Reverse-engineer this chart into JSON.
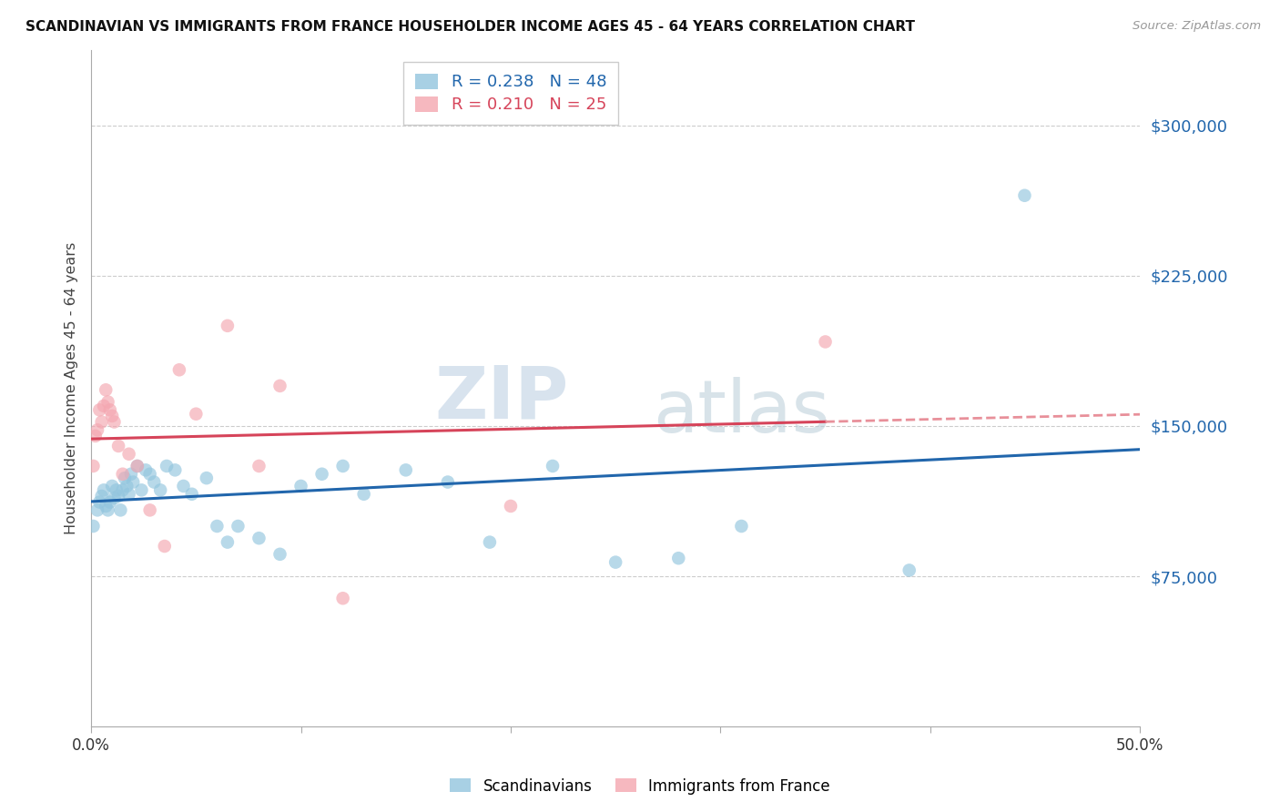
{
  "title": "SCANDINAVIAN VS IMMIGRANTS FROM FRANCE HOUSEHOLDER INCOME AGES 45 - 64 YEARS CORRELATION CHART",
  "source": "Source: ZipAtlas.com",
  "ylabel": "Householder Income Ages 45 - 64 years",
  "yticks": [
    0,
    75000,
    150000,
    225000,
    300000
  ],
  "ytick_labels": [
    "",
    "$75,000",
    "$150,000",
    "$225,000",
    "$300,000"
  ],
  "xmin": 0.0,
  "xmax": 0.5,
  "ymin": 0,
  "ymax": 337500,
  "scandinavian_R": 0.238,
  "scandinavian_N": 48,
  "france_R": 0.21,
  "france_N": 25,
  "blue_color": "#92c5de",
  "pink_color": "#f4a6b0",
  "blue_line_color": "#2166ac",
  "pink_line_color": "#d6445a",
  "pink_dash_color": "#e8909a",
  "watermark_zip": "ZIP",
  "watermark_atlas": "atlas",
  "legend_label_blue": "Scandinavians",
  "legend_label_pink": "Immigrants from France",
  "scandinavian_x": [
    0.001,
    0.003,
    0.004,
    0.005,
    0.006,
    0.007,
    0.008,
    0.009,
    0.01,
    0.011,
    0.012,
    0.013,
    0.014,
    0.015,
    0.016,
    0.017,
    0.018,
    0.019,
    0.02,
    0.022,
    0.024,
    0.026,
    0.028,
    0.03,
    0.033,
    0.036,
    0.04,
    0.044,
    0.048,
    0.055,
    0.06,
    0.065,
    0.07,
    0.08,
    0.09,
    0.1,
    0.11,
    0.12,
    0.13,
    0.15,
    0.17,
    0.19,
    0.22,
    0.25,
    0.28,
    0.31,
    0.39,
    0.445
  ],
  "scandinavian_y": [
    100000,
    108000,
    112000,
    115000,
    118000,
    110000,
    108000,
    112000,
    120000,
    114000,
    118000,
    115000,
    108000,
    118000,
    124000,
    120000,
    116000,
    126000,
    122000,
    130000,
    118000,
    128000,
    126000,
    122000,
    118000,
    130000,
    128000,
    120000,
    116000,
    124000,
    100000,
    92000,
    100000,
    94000,
    86000,
    120000,
    126000,
    130000,
    116000,
    128000,
    122000,
    92000,
    130000,
    82000,
    84000,
    100000,
    78000,
    265000
  ],
  "france_x": [
    0.001,
    0.002,
    0.003,
    0.004,
    0.005,
    0.006,
    0.007,
    0.008,
    0.009,
    0.01,
    0.011,
    0.013,
    0.015,
    0.018,
    0.022,
    0.028,
    0.035,
    0.042,
    0.05,
    0.065,
    0.08,
    0.09,
    0.12,
    0.2,
    0.35
  ],
  "france_y": [
    130000,
    145000,
    148000,
    158000,
    152000,
    160000,
    168000,
    162000,
    158000,
    155000,
    152000,
    140000,
    126000,
    136000,
    130000,
    108000,
    90000,
    178000,
    156000,
    200000,
    130000,
    170000,
    64000,
    110000,
    192000
  ]
}
